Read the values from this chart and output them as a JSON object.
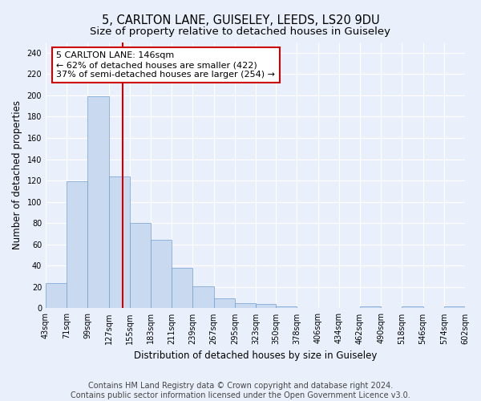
{
  "title1": "5, CARLTON LANE, GUISELEY, LEEDS, LS20 9DU",
  "title2": "Size of property relative to detached houses in Guiseley",
  "xlabel": "Distribution of detached houses by size in Guiseley",
  "ylabel": "Number of detached properties",
  "bar_color": "#c9d9f0",
  "bar_edge_color": "#6fa0d0",
  "bin_edges": [
    43,
    71,
    99,
    127,
    155,
    183,
    211,
    239,
    267,
    295,
    323,
    350,
    378,
    406,
    434,
    462,
    490,
    518,
    546,
    574,
    602
  ],
  "bar_heights": [
    24,
    119,
    199,
    124,
    80,
    64,
    38,
    21,
    9,
    5,
    4,
    2,
    0,
    0,
    0,
    2,
    0,
    2,
    0,
    2
  ],
  "tick_labels": [
    "43sqm",
    "71sqm",
    "99sqm",
    "127sqm",
    "155sqm",
    "183sqm",
    "211sqm",
    "239sqm",
    "267sqm",
    "295sqm",
    "323sqm",
    "350sqm",
    "378sqm",
    "406sqm",
    "434sqm",
    "462sqm",
    "490sqm",
    "518sqm",
    "546sqm",
    "574sqm",
    "602sqm"
  ],
  "vline_x": 146,
  "vline_color": "#cc0000",
  "annotation_text": "5 CARLTON LANE: 146sqm\n← 62% of detached houses are smaller (422)\n37% of semi-detached houses are larger (254) →",
  "annotation_box_color": "#ffffff",
  "annotation_box_edge": "#cc0000",
  "ylim": [
    0,
    250
  ],
  "yticks": [
    0,
    20,
    40,
    60,
    80,
    100,
    120,
    140,
    160,
    180,
    200,
    220,
    240
  ],
  "footer1": "Contains HM Land Registry data © Crown copyright and database right 2024.",
  "footer2": "Contains public sector information licensed under the Open Government Licence v3.0.",
  "background_color": "#eaf0fb",
  "grid_color": "#ffffff",
  "title1_fontsize": 10.5,
  "title2_fontsize": 9.5,
  "xlabel_fontsize": 8.5,
  "ylabel_fontsize": 8.5,
  "tick_fontsize": 7,
  "annotation_fontsize": 8,
  "footer_fontsize": 7
}
